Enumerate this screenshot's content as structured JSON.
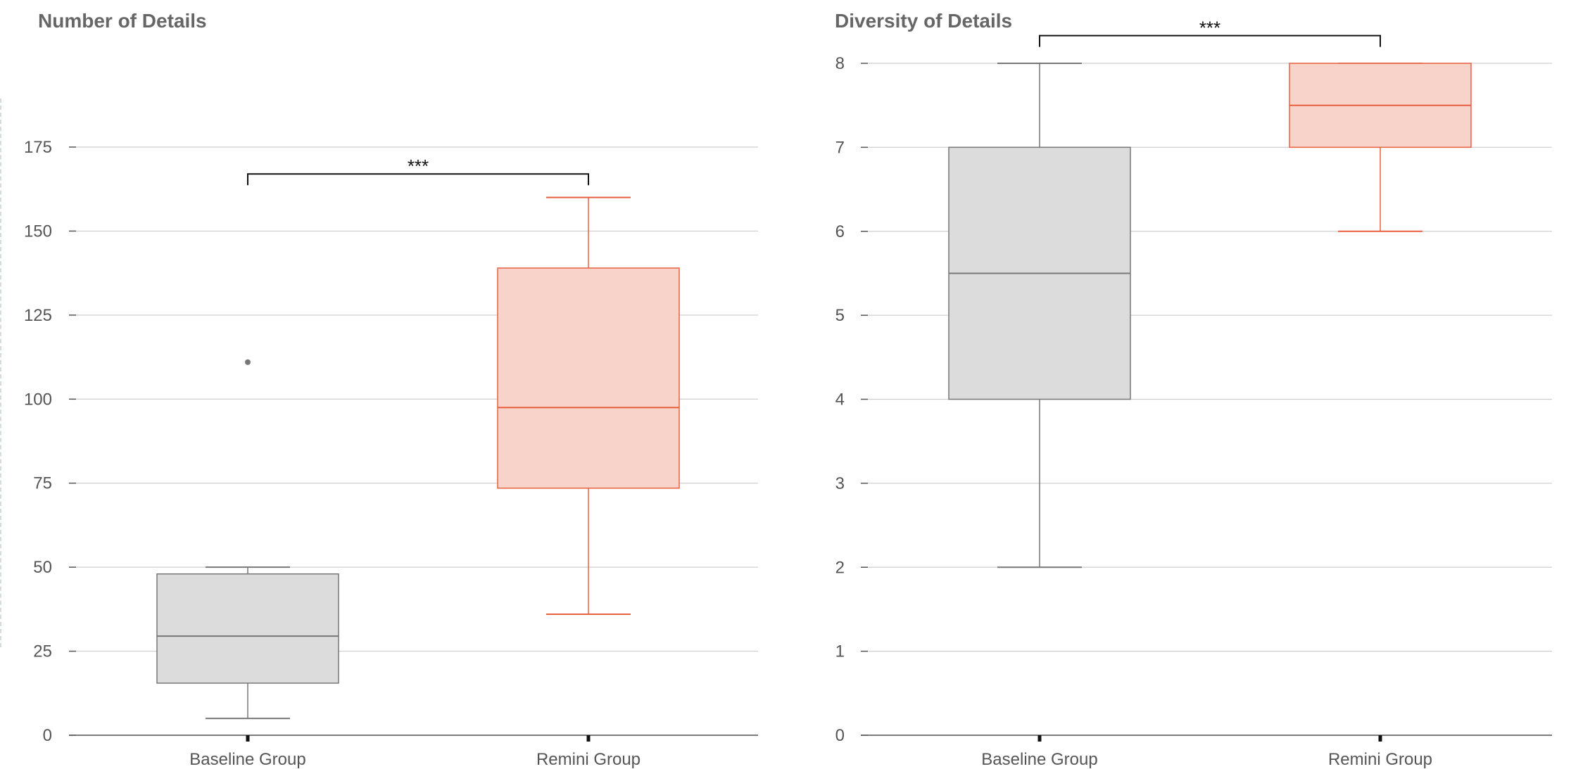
{
  "colors": {
    "baseline_fill": "#dcdcdc",
    "baseline_stroke": "#777777",
    "remini_fill": "#f8d3ca",
    "remini_stroke": "#e8613f",
    "grid": "#cfcfcf",
    "axis": "#555555",
    "tick_label": "#555555",
    "title": "#666666",
    "bracket": "#111111"
  },
  "chart_data": [
    {
      "type": "box",
      "title": "Number of Details",
      "categories": [
        "Baseline Group",
        "Remini Group"
      ],
      "ylim": [
        0,
        175
      ],
      "yticks": [
        0,
        25,
        50,
        75,
        100,
        125,
        150,
        175
      ],
      "series": [
        {
          "name": "Baseline Group",
          "whisker_low": 5,
          "q1": 15.5,
          "median": 29.5,
          "q3": 48,
          "whisker_high": 50,
          "outliers": [
            111
          ],
          "color_key": "baseline"
        },
        {
          "name": "Remini Group",
          "whisker_low": 36,
          "q1": 73.5,
          "median": 97.5,
          "q3": 139,
          "whisker_high": 160,
          "outliers": [],
          "color_key": "remini"
        }
      ],
      "significance": {
        "label": "***",
        "from": 0,
        "to": 1,
        "y": 167
      }
    },
    {
      "type": "box",
      "title": "Diversity of Details",
      "categories": [
        "Baseline Group",
        "Remini Group"
      ],
      "ylim": [
        0,
        8
      ],
      "yticks": [
        0,
        1,
        2,
        3,
        4,
        5,
        6,
        7,
        8
      ],
      "series": [
        {
          "name": "Baseline Group",
          "whisker_low": 2,
          "q1": 4,
          "median": 5.5,
          "q3": 7,
          "whisker_high": 8,
          "outliers": [],
          "color_key": "baseline"
        },
        {
          "name": "Remini Group",
          "whisker_low": 6,
          "q1": 7,
          "median": 7.5,
          "q3": 8,
          "whisker_high": 8,
          "outliers": [],
          "color_key": "remini"
        }
      ],
      "significance": {
        "label": "***",
        "from": 0,
        "to": 1,
        "y": 8.33
      }
    }
  ]
}
